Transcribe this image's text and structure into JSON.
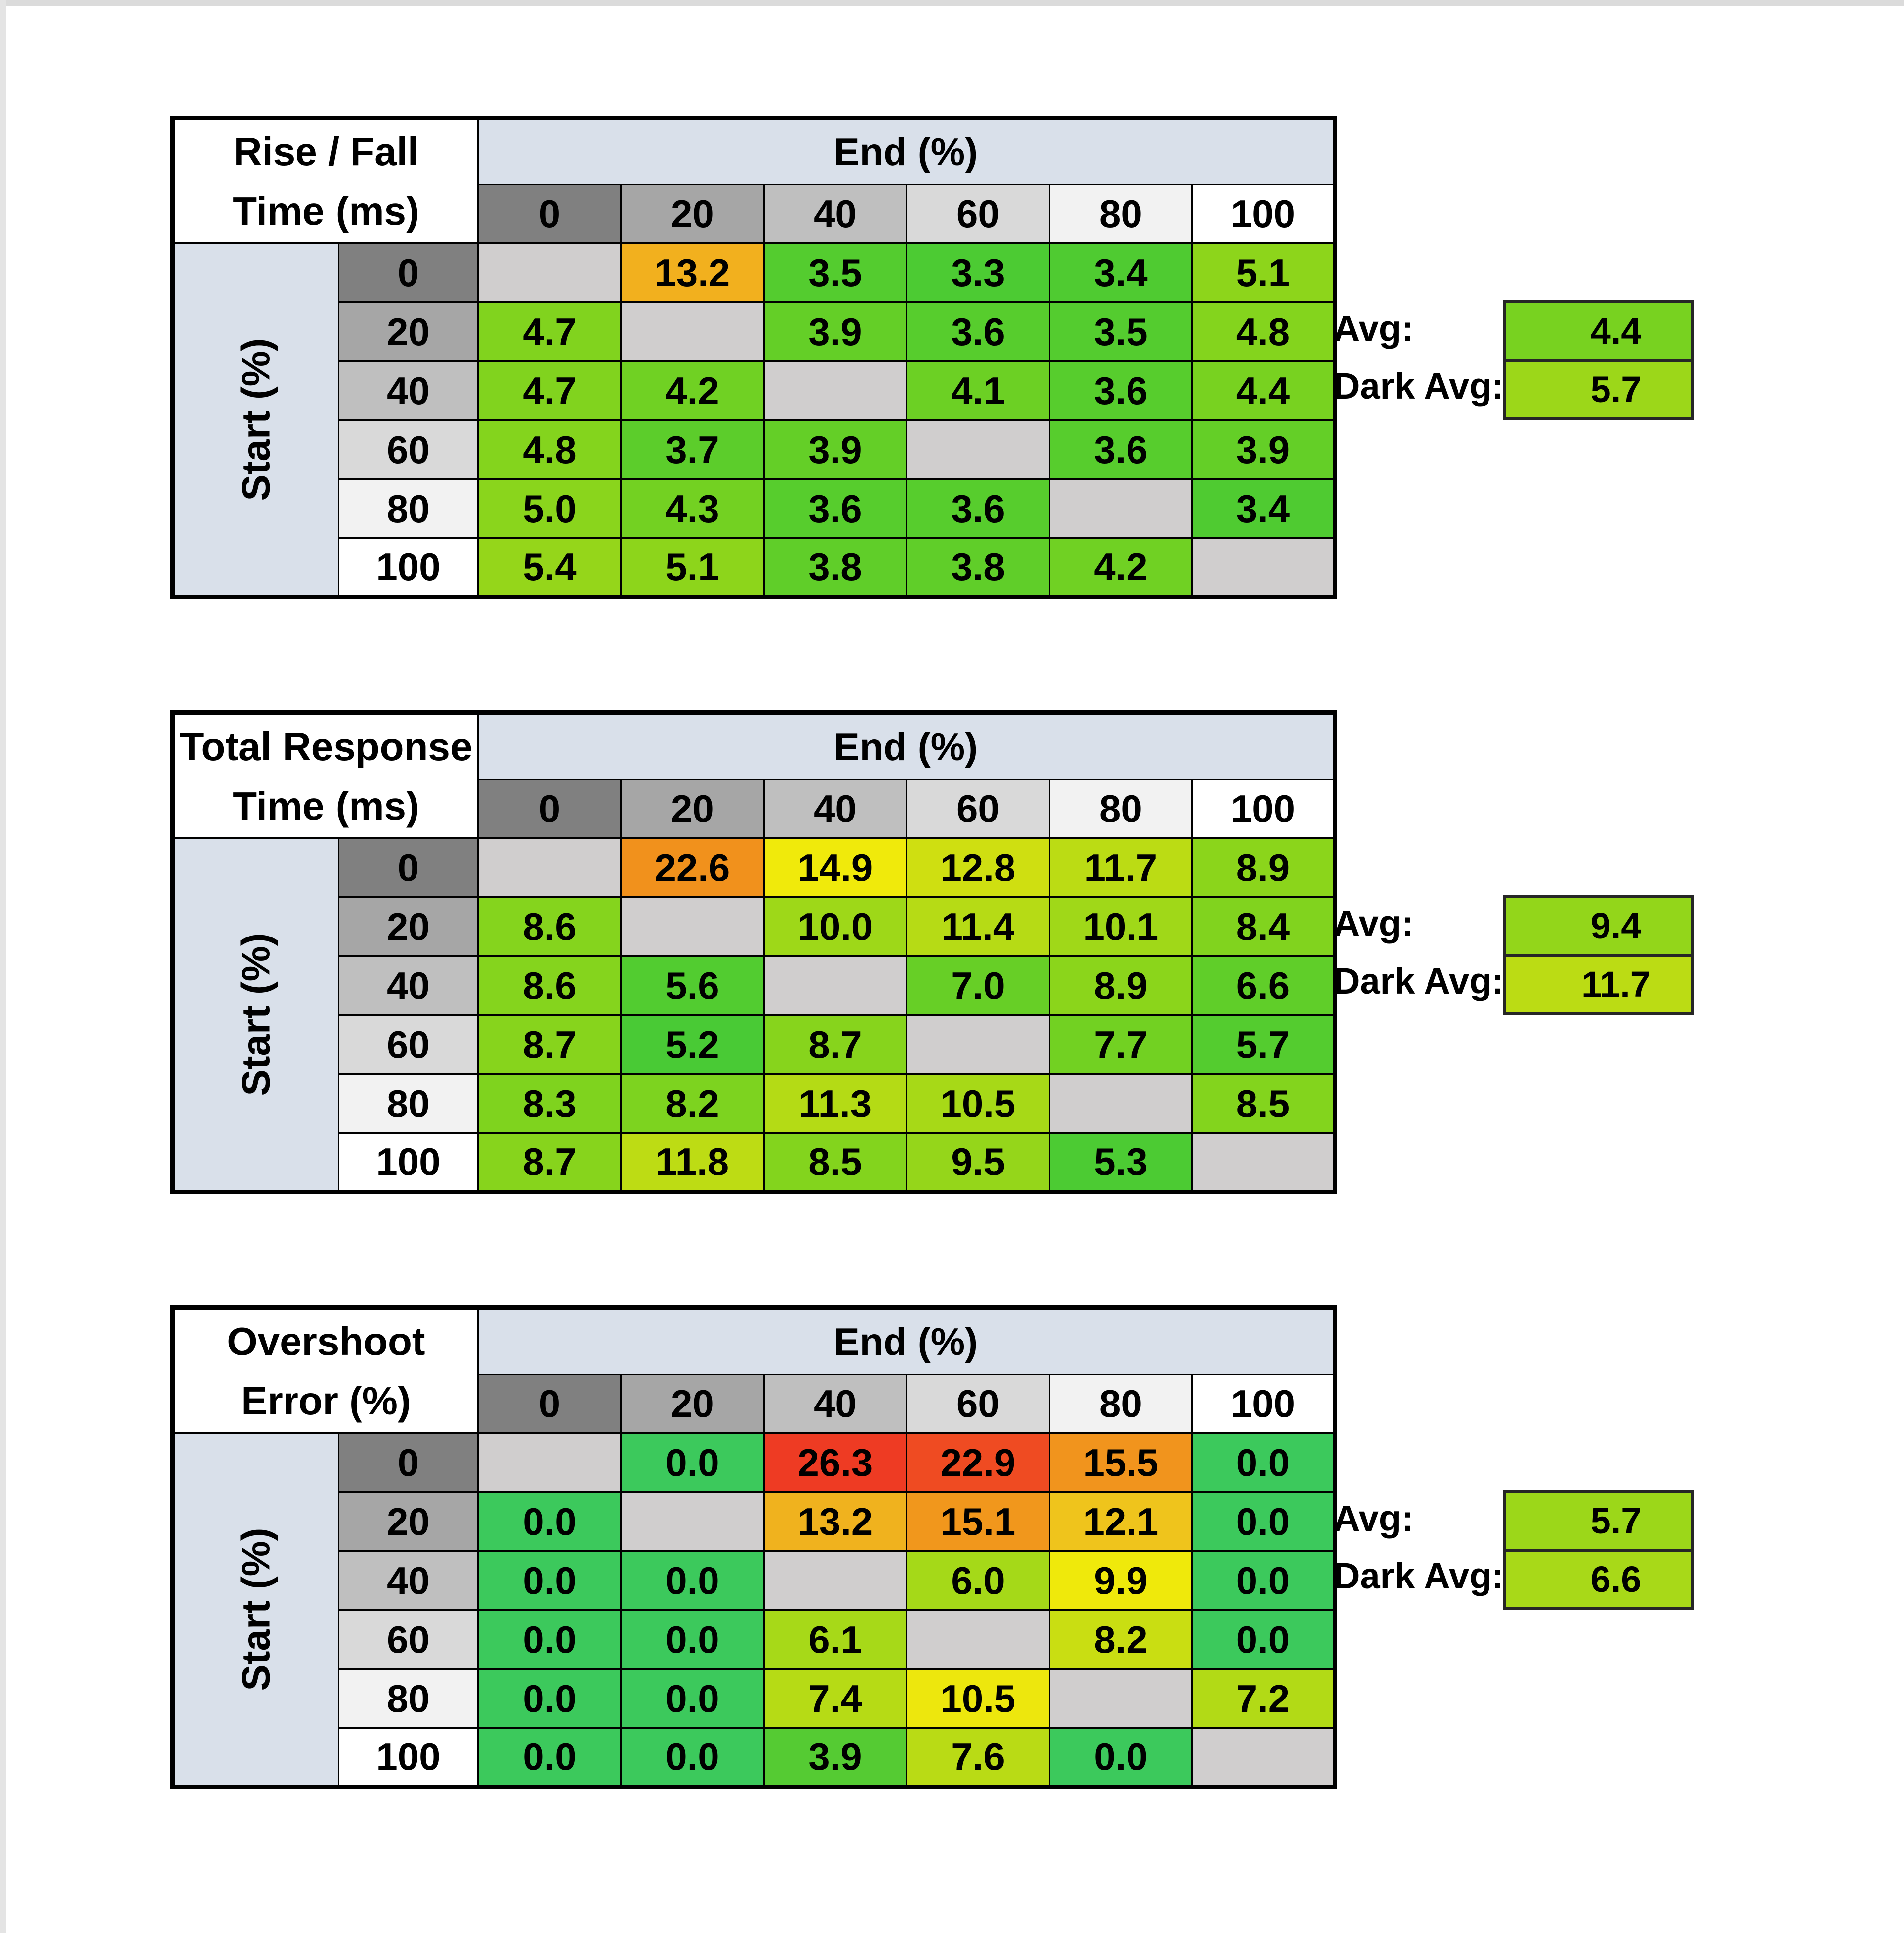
{
  "page": {
    "background": "#ffffff",
    "edge_color": "#dbdbdb"
  },
  "shared": {
    "end_label": "End (%)",
    "start_label": "Start (%)",
    "avg_label": "Avg:",
    "dark_avg_label": "Dark Avg:",
    "col_headers": [
      "0",
      "20",
      "40",
      "60",
      "80",
      "100"
    ],
    "row_headers": [
      "0",
      "20",
      "40",
      "60",
      "80",
      "100"
    ],
    "header_bgs": [
      "#808080",
      "#A6A6A6",
      "#BFBFBF",
      "#D9D9D9",
      "#F2F2F2",
      "#FFFFFF"
    ],
    "band_bg": "#D9E0EA",
    "blank_bg": "#D0CECE"
  },
  "tables": [
    {
      "title1": "Rise / Fall",
      "title2": "Time (ms)",
      "cells": [
        [
          null,
          {
            "v": "13.2",
            "c": "#F2B01E"
          },
          {
            "v": "3.5",
            "c": "#54CC2F"
          },
          {
            "v": "3.3",
            "c": "#4CCB33"
          },
          {
            "v": "3.4",
            "c": "#4FCB31"
          },
          {
            "v": "5.1",
            "c": "#8DD51B"
          }
        ],
        [
          {
            "v": "4.7",
            "c": "#81D31E"
          },
          null,
          {
            "v": "3.9",
            "c": "#64CF27"
          },
          {
            "v": "3.6",
            "c": "#57CD2D"
          },
          {
            "v": "3.5",
            "c": "#54CC2F"
          },
          {
            "v": "4.8",
            "c": "#84D41D"
          }
        ],
        [
          {
            "v": "4.7",
            "c": "#81D31E"
          },
          {
            "v": "4.2",
            "c": "#70D123"
          },
          null,
          {
            "v": "4.1",
            "c": "#6CD024"
          },
          {
            "v": "3.6",
            "c": "#57CD2D"
          },
          {
            "v": "4.4",
            "c": "#78D220"
          }
        ],
        [
          {
            "v": "4.8",
            "c": "#84D41D"
          },
          {
            "v": "3.7",
            "c": "#5CCD2B"
          },
          {
            "v": "3.9",
            "c": "#64CF27"
          },
          null,
          {
            "v": "3.6",
            "c": "#57CD2D"
          },
          {
            "v": "3.9",
            "c": "#64CF27"
          }
        ],
        [
          {
            "v": "5.0",
            "c": "#8AD51C"
          },
          {
            "v": "4.3",
            "c": "#73D122"
          },
          {
            "v": "3.6",
            "c": "#57CD2D"
          },
          {
            "v": "3.6",
            "c": "#57CD2D"
          },
          null,
          {
            "v": "3.4",
            "c": "#4FCB31"
          }
        ],
        [
          {
            "v": "5.4",
            "c": "#95D61A"
          },
          {
            "v": "5.1",
            "c": "#8DD51B"
          },
          {
            "v": "3.8",
            "c": "#60CE29"
          },
          {
            "v": "3.8",
            "c": "#60CE29"
          },
          {
            "v": "4.2",
            "c": "#70D123"
          },
          null
        ]
      ],
      "avg": {
        "v": "4.4",
        "c": "#78D220"
      },
      "dark_avg": {
        "v": "5.7",
        "c": "#9CD719"
      }
    },
    {
      "title1": "Total Response",
      "title2": "Time (ms)",
      "cells": [
        [
          null,
          {
            "v": "22.6",
            "c": "#F1911C"
          },
          {
            "v": "14.9",
            "c": "#F0EA0B"
          },
          {
            "v": "12.8",
            "c": "#CFDF11"
          },
          {
            "v": "11.7",
            "c": "#BBDC14"
          },
          {
            "v": "8.9",
            "c": "#8BD51B"
          }
        ],
        [
          {
            "v": "8.6",
            "c": "#85D41D"
          },
          null,
          {
            "v": "10.0",
            "c": "#9ED818"
          },
          {
            "v": "11.4",
            "c": "#B6DB15"
          },
          {
            "v": "10.1",
            "c": "#A0D818"
          },
          {
            "v": "8.4",
            "c": "#81D31E"
          }
        ],
        [
          {
            "v": "8.6",
            "c": "#85D41D"
          },
          {
            "v": "5.6",
            "c": "#52CC30"
          },
          null,
          {
            "v": "7.0",
            "c": "#67CF26"
          },
          {
            "v": "8.9",
            "c": "#8BD51B"
          },
          {
            "v": "6.6",
            "c": "#60CE29"
          }
        ],
        [
          {
            "v": "8.7",
            "c": "#87D41C"
          },
          {
            "v": "5.2",
            "c": "#49CA35"
          },
          {
            "v": "8.7",
            "c": "#87D41C"
          },
          null,
          {
            "v": "7.7",
            "c": "#72D122"
          },
          {
            "v": "5.7",
            "c": "#54CC2F"
          }
        ],
        [
          {
            "v": "8.3",
            "c": "#7FD31E"
          },
          {
            "v": "8.2",
            "c": "#7DD31F"
          },
          {
            "v": "11.3",
            "c": "#B4DB15"
          },
          {
            "v": "10.5",
            "c": "#A7D917"
          },
          null,
          {
            "v": "8.5",
            "c": "#83D41D"
          }
        ],
        [
          {
            "v": "8.7",
            "c": "#87D41C"
          },
          {
            "v": "11.8",
            "c": "#BDDC14"
          },
          {
            "v": "8.5",
            "c": "#83D41D"
          },
          {
            "v": "9.5",
            "c": "#95D61A"
          },
          {
            "v": "5.3",
            "c": "#4CCB33"
          },
          null
        ]
      ],
      "avg": {
        "v": "9.4",
        "c": "#93D61A"
      },
      "dark_avg": {
        "v": "11.7",
        "c": "#BBDC14"
      }
    },
    {
      "title1": "Overshoot",
      "title2": "Error (%)",
      "cells": [
        [
          null,
          {
            "v": "0.0",
            "c": "#3CC95C"
          },
          {
            "v": "26.3",
            "c": "#EE3B23"
          },
          {
            "v": "22.9",
            "c": "#EF4B22"
          },
          {
            "v": "15.5",
            "c": "#F1941D"
          },
          {
            "v": "0.0",
            "c": "#3CC95C"
          }
        ],
        [
          {
            "v": "0.0",
            "c": "#3CC95C"
          },
          null,
          {
            "v": "13.2",
            "c": "#F0B21E"
          },
          {
            "v": "15.1",
            "c": "#F1971C"
          },
          {
            "v": "12.1",
            "c": "#EFC41C"
          },
          {
            "v": "0.0",
            "c": "#3CC95C"
          }
        ],
        [
          {
            "v": "0.0",
            "c": "#3CC95C"
          },
          {
            "v": "0.0",
            "c": "#3CC95C"
          },
          null,
          {
            "v": "6.0",
            "c": "#A5D918"
          },
          {
            "v": "9.9",
            "c": "#EFE90B"
          },
          {
            "v": "0.0",
            "c": "#3CC95C"
          }
        ],
        [
          {
            "v": "0.0",
            "c": "#3CC95C"
          },
          {
            "v": "0.0",
            "c": "#3CC95C"
          },
          {
            "v": "6.1",
            "c": "#A7D918"
          },
          null,
          {
            "v": "8.2",
            "c": "#C9DE12"
          },
          {
            "v": "0.0",
            "c": "#3CC95C"
          }
        ],
        [
          {
            "v": "0.0",
            "c": "#3CC95C"
          },
          {
            "v": "0.0",
            "c": "#3CC95C"
          },
          {
            "v": "7.4",
            "c": "#B6DB15"
          },
          {
            "v": "10.5",
            "c": "#EDE70D"
          },
          null,
          {
            "v": "7.2",
            "c": "#B2DA16"
          }
        ],
        [
          {
            "v": "0.0",
            "c": "#3CC95C"
          },
          {
            "v": "0.0",
            "c": "#3CC95C"
          },
          {
            "v": "3.9",
            "c": "#55CB33"
          },
          {
            "v": "7.6",
            "c": "#B9DB15"
          },
          {
            "v": "0.0",
            "c": "#3CC95C"
          },
          null
        ]
      ],
      "avg": {
        "v": "5.7",
        "c": "#9CD719"
      },
      "dark_avg": {
        "v": "6.6",
        "c": "#A8D918"
      }
    }
  ],
  "chart_data": [
    {
      "type": "heatmap",
      "title": "Rise / Fall Time (ms)",
      "xlabel": "End (%)",
      "ylabel": "Start (%)",
      "x": [
        0,
        20,
        40,
        60,
        80,
        100
      ],
      "y": [
        0,
        20,
        40,
        60,
        80,
        100
      ],
      "values": [
        [
          null,
          13.2,
          3.5,
          3.3,
          3.4,
          5.1
        ],
        [
          4.7,
          null,
          3.9,
          3.6,
          3.5,
          4.8
        ],
        [
          4.7,
          4.2,
          null,
          4.1,
          3.6,
          4.4
        ],
        [
          4.8,
          3.7,
          3.9,
          null,
          3.6,
          3.9
        ],
        [
          5.0,
          4.3,
          3.6,
          3.6,
          null,
          3.4
        ],
        [
          5.4,
          5.1,
          3.8,
          3.8,
          4.2,
          null
        ]
      ],
      "avg": 4.4,
      "dark_avg": 5.7
    },
    {
      "type": "heatmap",
      "title": "Total Response Time (ms)",
      "xlabel": "End (%)",
      "ylabel": "Start (%)",
      "x": [
        0,
        20,
        40,
        60,
        80,
        100
      ],
      "y": [
        0,
        20,
        40,
        60,
        80,
        100
      ],
      "values": [
        [
          null,
          22.6,
          14.9,
          12.8,
          11.7,
          8.9
        ],
        [
          8.6,
          null,
          10.0,
          11.4,
          10.1,
          8.4
        ],
        [
          8.6,
          5.6,
          null,
          7.0,
          8.9,
          6.6
        ],
        [
          8.7,
          5.2,
          8.7,
          null,
          7.7,
          5.7
        ],
        [
          8.3,
          8.2,
          11.3,
          10.5,
          null,
          8.5
        ],
        [
          8.7,
          11.8,
          8.5,
          9.5,
          5.3,
          null
        ]
      ],
      "avg": 9.4,
      "dark_avg": 11.7
    },
    {
      "type": "heatmap",
      "title": "Overshoot Error (%)",
      "xlabel": "End (%)",
      "ylabel": "Start (%)",
      "x": [
        0,
        20,
        40,
        60,
        80,
        100
      ],
      "y": [
        0,
        20,
        40,
        60,
        80,
        100
      ],
      "values": [
        [
          null,
          0.0,
          26.3,
          22.9,
          15.5,
          0.0
        ],
        [
          0.0,
          null,
          13.2,
          15.1,
          12.1,
          0.0
        ],
        [
          0.0,
          0.0,
          null,
          6.0,
          9.9,
          0.0
        ],
        [
          0.0,
          0.0,
          6.1,
          null,
          8.2,
          0.0
        ],
        [
          0.0,
          0.0,
          7.4,
          10.5,
          null,
          7.2
        ],
        [
          0.0,
          0.0,
          3.9,
          7.6,
          0.0,
          null
        ]
      ],
      "avg": 5.7,
      "dark_avg": 6.6
    }
  ]
}
